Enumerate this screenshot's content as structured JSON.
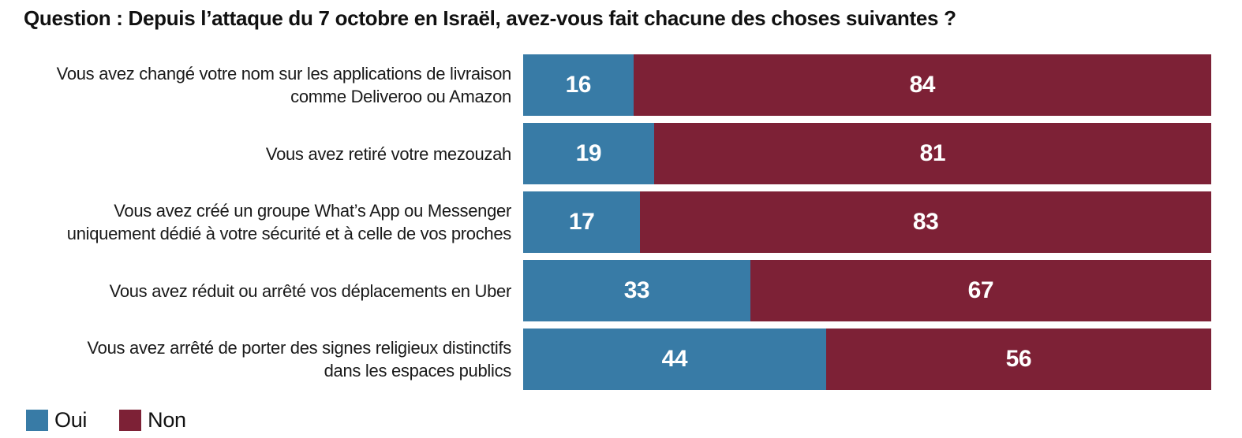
{
  "title": "Question : Depuis l’attaque du 7 octobre en Israël, avez-vous fait chacune des choses suivantes ?",
  "legend": {
    "items": [
      {
        "label": "Oui",
        "color": "#387BA6"
      },
      {
        "label": "Non",
        "color": "#7D2136"
      }
    ],
    "position": "bottom-left"
  },
  "chart_data": {
    "type": "bar",
    "orientation": "horizontal",
    "stacked": true,
    "unit": "percent",
    "xlim": [
      0,
      100
    ],
    "grid": false,
    "value_labels": "inside-center",
    "legend_position": "bottom-left",
    "title": "Question : Depuis l’attaque du 7 octobre en Israël, avez-vous fait chacune des choses suivantes ?",
    "categories": [
      "Vous avez changé votre nom sur les applications de livraison comme Deliveroo ou Amazon",
      "Vous avez retiré votre mezouzah",
      "Vous avez créé un groupe What’s App ou Messenger uniquement dédié à votre sécurité et à celle de vos proches",
      "Vous avez réduit ou arrêté vos déplacements en Uber",
      "Vous avez arrêté de porter des signes religieux distinctifs dans les espaces publics"
    ],
    "categories_lines": [
      [
        "Vous avez changé votre nom sur les applications de livraison",
        "comme Deliveroo ou Amazon"
      ],
      [
        "Vous avez retiré votre mezouzah"
      ],
      [
        "Vous avez créé un groupe What’s App ou Messenger",
        "uniquement dédié à votre sécurité et à celle de vos proches"
      ],
      [
        "Vous avez réduit ou arrêté vos déplacements en Uber"
      ],
      [
        "Vous avez arrêté de porter des signes religieux distinctifs",
        "dans les espaces publics"
      ]
    ],
    "series": [
      {
        "name": "Oui",
        "color": "#387BA6",
        "values": [
          16,
          19,
          17,
          33,
          44
        ]
      },
      {
        "name": "Non",
        "color": "#7D2136",
        "values": [
          84,
          81,
          83,
          67,
          56
        ]
      }
    ]
  }
}
